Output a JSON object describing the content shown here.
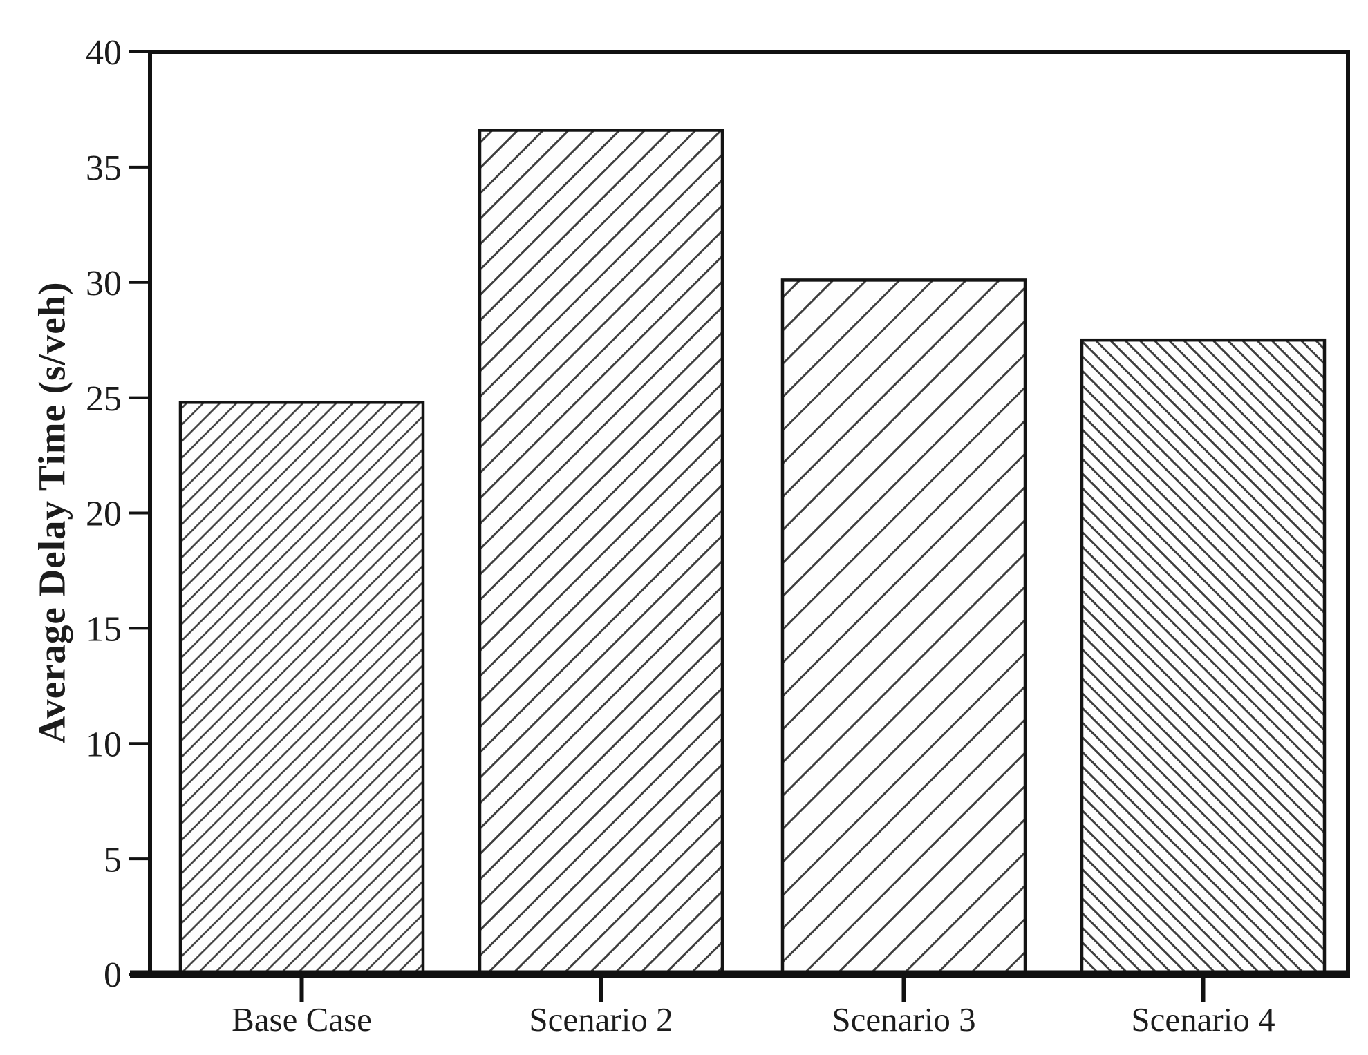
{
  "page": {
    "background_color": "#ffffff"
  },
  "chart_data": {
    "type": "bar",
    "title": "",
    "xlabel": "",
    "ylabel": "Average Delay Time (s/veh)",
    "categories": [
      "Base Case",
      "Scenario 2",
      "Scenario 3",
      "Scenario 4"
    ],
    "values": [
      24.8,
      36.6,
      30.1,
      27.5
    ],
    "ylim": [
      0,
      40
    ],
    "yticks": [
      0,
      5,
      10,
      15,
      20,
      25,
      30,
      35,
      40
    ],
    "grid": false,
    "legend": false,
    "axis_color": "#111111",
    "text_color": "#1c1c1c",
    "bar_fill": "#fefefe",
    "bar_outline": "#141414",
    "hatch_color": "#3e3e3e",
    "hatches": [
      {
        "series": "Base Case",
        "direction": "forward-diagonal",
        "spacing": 17,
        "stroke_width": 2.6
      },
      {
        "series": "Scenario 2",
        "direction": "forward-diagonal",
        "spacing": 26,
        "stroke_width": 3
      },
      {
        "series": "Scenario 3",
        "direction": "forward-diagonal",
        "spacing": 34,
        "stroke_width": 3
      },
      {
        "series": "Scenario 4",
        "direction": "backward-diagonal",
        "spacing": 15,
        "stroke_width": 3
      }
    ]
  }
}
